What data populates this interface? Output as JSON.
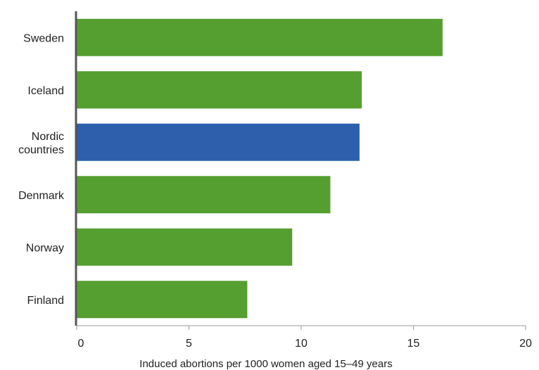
{
  "chart_data": {
    "type": "bar",
    "orientation": "horizontal",
    "categories": [
      "Sweden",
      "Iceland",
      "Nordic countries",
      "Denmark",
      "Norway",
      "Finland"
    ],
    "category_label_lines": [
      [
        "Sweden"
      ],
      [
        "Iceland"
      ],
      [
        "Nordic",
        "countries"
      ],
      [
        "Denmark"
      ],
      [
        "Norway"
      ],
      [
        "Finland"
      ]
    ],
    "values": [
      16.3,
      12.7,
      12.6,
      11.3,
      9.6,
      7.6
    ],
    "bar_colors": [
      "#559e30",
      "#559e30",
      "#2e5fad",
      "#559e30",
      "#559e30",
      "#559e30"
    ],
    "xlabel": "Induced abortions per 1000 women aged 15–49 years",
    "ylabel": "",
    "xlim": [
      0,
      20
    ],
    "xticks": [
      0,
      5,
      10,
      15,
      20
    ],
    "grid": false,
    "legend": "none"
  }
}
